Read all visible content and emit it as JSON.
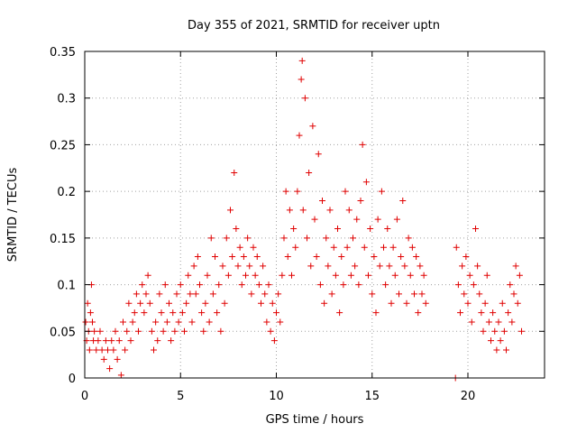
{
  "chart_data": {
    "type": "scatter",
    "title": "Day 355 of 2021, SRMTID for receiver uptn",
    "xlabel": "GPS time / hours",
    "ylabel": "SRMTID / TECUs",
    "xlim": [
      0,
      24
    ],
    "ylim": [
      0,
      0.35
    ],
    "xticks": [
      0,
      5,
      10,
      15,
      20
    ],
    "xtick_labels": [
      "0",
      "5",
      "10",
      "15",
      "20"
    ],
    "yticks": [
      0,
      0.05,
      0.1,
      0.15,
      0.2,
      0.25,
      0.3,
      0.35
    ],
    "ytick_labels": [
      "0",
      "0.05",
      "0.1",
      "0.15",
      "0.2",
      "0.25",
      "0.3",
      "0.35"
    ],
    "grid": true,
    "marker": "plus",
    "color": "#e00000",
    "series": [
      {
        "name": "SRMTID",
        "points": [
          [
            0.05,
            0.06
          ],
          [
            0.1,
            0.04
          ],
          [
            0.15,
            0.08
          ],
          [
            0.2,
            0.05
          ],
          [
            0.25,
            0.03
          ],
          [
            0.3,
            0.07
          ],
          [
            0.35,
            0.1
          ],
          [
            0.4,
            0.06
          ],
          [
            0.45,
            0.04
          ],
          [
            0.5,
            0.05
          ],
          [
            0.6,
            0.03
          ],
          [
            0.7,
            0.04
          ],
          [
            0.8,
            0.05
          ],
          [
            0.9,
            0.03
          ],
          [
            1.0,
            0.02
          ],
          [
            1.1,
            0.04
          ],
          [
            1.2,
            0.03
          ],
          [
            1.3,
            0.01
          ],
          [
            1.4,
            0.04
          ],
          [
            1.5,
            0.03
          ],
          [
            1.6,
            0.05
          ],
          [
            1.7,
            0.02
          ],
          [
            1.8,
            0.04
          ],
          [
            1.9,
            0.003
          ],
          [
            2.0,
            0.06
          ],
          [
            2.1,
            0.03
          ],
          [
            2.2,
            0.05
          ],
          [
            2.3,
            0.08
          ],
          [
            2.4,
            0.04
          ],
          [
            2.5,
            0.06
          ],
          [
            2.6,
            0.07
          ],
          [
            2.7,
            0.09
          ],
          [
            2.8,
            0.05
          ],
          [
            2.9,
            0.08
          ],
          [
            3.0,
            0.1
          ],
          [
            3.1,
            0.07
          ],
          [
            3.2,
            0.09
          ],
          [
            3.3,
            0.11
          ],
          [
            3.4,
            0.08
          ],
          [
            3.5,
            0.05
          ],
          [
            3.6,
            0.03
          ],
          [
            3.7,
            0.06
          ],
          [
            3.8,
            0.04
          ],
          [
            3.9,
            0.09
          ],
          [
            4.0,
            0.07
          ],
          [
            4.1,
            0.05
          ],
          [
            4.2,
            0.1
          ],
          [
            4.3,
            0.06
          ],
          [
            4.4,
            0.08
          ],
          [
            4.5,
            0.04
          ],
          [
            4.6,
            0.07
          ],
          [
            4.7,
            0.05
          ],
          [
            4.8,
            0.09
          ],
          [
            4.9,
            0.06
          ],
          [
            5.0,
            0.1
          ],
          [
            5.1,
            0.07
          ],
          [
            5.2,
            0.05
          ],
          [
            5.3,
            0.08
          ],
          [
            5.4,
            0.11
          ],
          [
            5.5,
            0.09
          ],
          [
            5.6,
            0.06
          ],
          [
            5.7,
            0.12
          ],
          [
            5.8,
            0.09
          ],
          [
            5.9,
            0.13
          ],
          [
            6.0,
            0.1
          ],
          [
            6.1,
            0.07
          ],
          [
            6.2,
            0.05
          ],
          [
            6.3,
            0.08
          ],
          [
            6.4,
            0.11
          ],
          [
            6.5,
            0.06
          ],
          [
            6.6,
            0.15
          ],
          [
            6.7,
            0.09
          ],
          [
            6.8,
            0.13
          ],
          [
            6.9,
            0.07
          ],
          [
            7.0,
            0.1
          ],
          [
            7.1,
            0.05
          ],
          [
            7.2,
            0.12
          ],
          [
            7.3,
            0.08
          ],
          [
            7.4,
            0.15
          ],
          [
            7.5,
            0.11
          ],
          [
            7.6,
            0.18
          ],
          [
            7.7,
            0.13
          ],
          [
            7.8,
            0.22
          ],
          [
            7.9,
            0.16
          ],
          [
            8.0,
            0.12
          ],
          [
            8.1,
            0.14
          ],
          [
            8.2,
            0.1
          ],
          [
            8.3,
            0.13
          ],
          [
            8.4,
            0.11
          ],
          [
            8.5,
            0.15
          ],
          [
            8.6,
            0.12
          ],
          [
            8.7,
            0.09
          ],
          [
            8.8,
            0.14
          ],
          [
            8.9,
            0.11
          ],
          [
            9.0,
            0.13
          ],
          [
            9.1,
            0.1
          ],
          [
            9.2,
            0.08
          ],
          [
            9.3,
            0.12
          ],
          [
            9.4,
            0.09
          ],
          [
            9.5,
            0.06
          ],
          [
            9.6,
            0.1
          ],
          [
            9.7,
            0.05
          ],
          [
            9.8,
            0.08
          ],
          [
            9.9,
            0.04
          ],
          [
            10.0,
            0.07
          ],
          [
            10.1,
            0.09
          ],
          [
            10.2,
            0.06
          ],
          [
            10.3,
            0.11
          ],
          [
            10.4,
            0.15
          ],
          [
            10.5,
            0.2
          ],
          [
            10.6,
            0.13
          ],
          [
            10.7,
            0.18
          ],
          [
            10.8,
            0.11
          ],
          [
            10.9,
            0.16
          ],
          [
            11.0,
            0.14
          ],
          [
            11.1,
            0.2
          ],
          [
            11.2,
            0.26
          ],
          [
            11.3,
            0.32
          ],
          [
            11.35,
            0.34
          ],
          [
            11.4,
            0.18
          ],
          [
            11.5,
            0.3
          ],
          [
            11.6,
            0.15
          ],
          [
            11.7,
            0.22
          ],
          [
            11.8,
            0.12
          ],
          [
            11.9,
            0.27
          ],
          [
            12.0,
            0.17
          ],
          [
            12.1,
            0.13
          ],
          [
            12.2,
            0.24
          ],
          [
            12.3,
            0.1
          ],
          [
            12.4,
            0.19
          ],
          [
            12.5,
            0.08
          ],
          [
            12.6,
            0.15
          ],
          [
            12.7,
            0.12
          ],
          [
            12.8,
            0.18
          ],
          [
            12.9,
            0.09
          ],
          [
            13.0,
            0.14
          ],
          [
            13.1,
            0.11
          ],
          [
            13.2,
            0.16
          ],
          [
            13.3,
            0.07
          ],
          [
            13.4,
            0.13
          ],
          [
            13.5,
            0.1
          ],
          [
            13.6,
            0.2
          ],
          [
            13.7,
            0.14
          ],
          [
            13.8,
            0.18
          ],
          [
            13.9,
            0.11
          ],
          [
            14.0,
            0.15
          ],
          [
            14.1,
            0.12
          ],
          [
            14.2,
            0.17
          ],
          [
            14.3,
            0.1
          ],
          [
            14.4,
            0.19
          ],
          [
            14.5,
            0.25
          ],
          [
            14.6,
            0.14
          ],
          [
            14.7,
            0.21
          ],
          [
            14.8,
            0.11
          ],
          [
            14.9,
            0.16
          ],
          [
            15.0,
            0.09
          ],
          [
            15.1,
            0.13
          ],
          [
            15.2,
            0.07
          ],
          [
            15.3,
            0.17
          ],
          [
            15.4,
            0.12
          ],
          [
            15.5,
            0.2
          ],
          [
            15.6,
            0.14
          ],
          [
            15.7,
            0.1
          ],
          [
            15.8,
            0.16
          ],
          [
            15.9,
            0.12
          ],
          [
            16.0,
            0.08
          ],
          [
            16.1,
            0.14
          ],
          [
            16.2,
            0.11
          ],
          [
            16.3,
            0.17
          ],
          [
            16.4,
            0.09
          ],
          [
            16.5,
            0.13
          ],
          [
            16.6,
            0.19
          ],
          [
            16.7,
            0.12
          ],
          [
            16.8,
            0.08
          ],
          [
            16.9,
            0.15
          ],
          [
            17.0,
            0.11
          ],
          [
            17.1,
            0.14
          ],
          [
            17.2,
            0.09
          ],
          [
            17.3,
            0.13
          ],
          [
            17.4,
            0.07
          ],
          [
            17.5,
            0.12
          ],
          [
            17.6,
            0.09
          ],
          [
            17.7,
            0.11
          ],
          [
            17.8,
            0.08
          ],
          [
            19.35,
            0.0
          ],
          [
            19.4,
            0.14
          ],
          [
            19.5,
            0.1
          ],
          [
            19.6,
            0.07
          ],
          [
            19.7,
            0.12
          ],
          [
            19.8,
            0.09
          ],
          [
            19.9,
            0.13
          ],
          [
            20.0,
            0.08
          ],
          [
            20.1,
            0.11
          ],
          [
            20.2,
            0.06
          ],
          [
            20.3,
            0.1
          ],
          [
            20.4,
            0.16
          ],
          [
            20.5,
            0.12
          ],
          [
            20.6,
            0.09
          ],
          [
            20.7,
            0.07
          ],
          [
            20.8,
            0.05
          ],
          [
            20.9,
            0.08
          ],
          [
            21.0,
            0.11
          ],
          [
            21.1,
            0.06
          ],
          [
            21.2,
            0.04
          ],
          [
            21.3,
            0.07
          ],
          [
            21.4,
            0.05
          ],
          [
            21.5,
            0.03
          ],
          [
            21.6,
            0.06
          ],
          [
            21.7,
            0.04
          ],
          [
            21.8,
            0.08
          ],
          [
            21.9,
            0.05
          ],
          [
            22.0,
            0.03
          ],
          [
            22.1,
            0.07
          ],
          [
            22.2,
            0.1
          ],
          [
            22.3,
            0.06
          ],
          [
            22.4,
            0.09
          ],
          [
            22.5,
            0.12
          ],
          [
            22.6,
            0.08
          ],
          [
            22.7,
            0.11
          ],
          [
            22.8,
            0.05
          ]
        ]
      }
    ]
  }
}
